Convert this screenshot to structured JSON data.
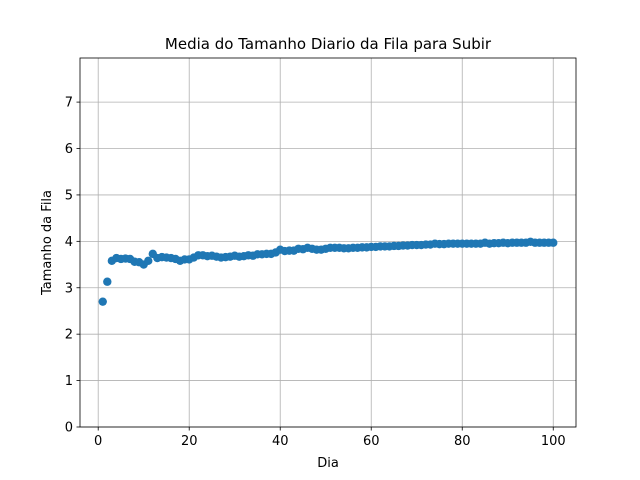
{
  "chart_data": {
    "type": "scatter",
    "title": "Media do Tamanho Diario da Fila para Subir",
    "xlabel": "Dia",
    "ylabel": "Tamanho da Fila",
    "xlim": [
      -4,
      105
    ],
    "ylim": [
      0,
      7.95
    ],
    "xticks": [
      0,
      20,
      40,
      60,
      80,
      100
    ],
    "yticks": [
      0,
      1,
      2,
      3,
      4,
      5,
      6,
      7
    ],
    "grid": true,
    "color": "#1f77b4",
    "series": [
      {
        "x": [
          1,
          2,
          3,
          4,
          5,
          6,
          7,
          8,
          9,
          10,
          11,
          12,
          13,
          14,
          15,
          16,
          17,
          18,
          19,
          20,
          21,
          22,
          23,
          24,
          25,
          26,
          27,
          28,
          29,
          30,
          31,
          32,
          33,
          34,
          35,
          36,
          37,
          38,
          39,
          40,
          41,
          42,
          43,
          44,
          45,
          46,
          47,
          48,
          49,
          50,
          51,
          52,
          53,
          54,
          55,
          56,
          57,
          58,
          59,
          60,
          61,
          62,
          63,
          64,
          65,
          66,
          67,
          68,
          69,
          70,
          71,
          72,
          73,
          74,
          75,
          76,
          77,
          78,
          79,
          80,
          81,
          82,
          83,
          84,
          85,
          86,
          87,
          88,
          89,
          90,
          91,
          92,
          93,
          94,
          95,
          96,
          97,
          98,
          99,
          100
        ],
        "y": [
          2.7,
          3.13,
          3.58,
          3.64,
          3.62,
          3.63,
          3.62,
          3.56,
          3.55,
          3.5,
          3.58,
          3.73,
          3.64,
          3.66,
          3.65,
          3.64,
          3.62,
          3.58,
          3.61,
          3.61,
          3.65,
          3.7,
          3.7,
          3.68,
          3.69,
          3.67,
          3.65,
          3.66,
          3.67,
          3.69,
          3.67,
          3.68,
          3.7,
          3.69,
          3.72,
          3.72,
          3.73,
          3.73,
          3.76,
          3.82,
          3.79,
          3.8,
          3.8,
          3.84,
          3.83,
          3.86,
          3.84,
          3.82,
          3.82,
          3.84,
          3.86,
          3.86,
          3.86,
          3.85,
          3.85,
          3.86,
          3.86,
          3.87,
          3.87,
          3.88,
          3.88,
          3.89,
          3.89,
          3.89,
          3.9,
          3.9,
          3.91,
          3.91,
          3.92,
          3.92,
          3.92,
          3.93,
          3.93,
          3.95,
          3.94,
          3.94,
          3.95,
          3.95,
          3.95,
          3.95,
          3.95,
          3.95,
          3.95,
          3.95,
          3.97,
          3.95,
          3.96,
          3.96,
          3.97,
          3.96,
          3.97,
          3.97,
          3.97,
          3.97,
          3.99,
          3.97,
          3.97,
          3.97,
          3.97,
          3.97
        ]
      }
    ]
  }
}
